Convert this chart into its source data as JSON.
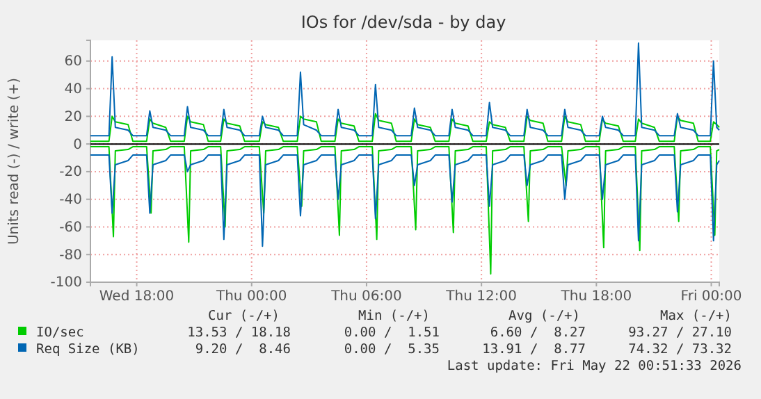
{
  "chart_data": {
    "type": "line",
    "title": "IOs for /dev/sda - by day",
    "ylabel": "Units read (-) / write (+)",
    "x": [
      "2026-05-20T15:35",
      "2026-05-20T16:33",
      "2026-05-20T16:43",
      "2026-05-20T16:53",
      "2026-05-20T17:33",
      "2026-05-20T17:48",
      "2026-05-20T18:31",
      "2026-05-20T18:41",
      "2026-05-20T18:51",
      "2026-05-20T19:31",
      "2026-05-20T19:46",
      "2026-05-20T20:29",
      "2026-05-20T20:39",
      "2026-05-20T20:49",
      "2026-05-20T21:29",
      "2026-05-20T21:44",
      "2026-05-20T22:23",
      "2026-05-20T22:33",
      "2026-05-20T22:43",
      "2026-05-20T23:23",
      "2026-05-20T23:38",
      "2026-05-21T00:24",
      "2026-05-21T00:34",
      "2026-05-21T00:44",
      "2026-05-21T01:24",
      "2026-05-21T01:39",
      "2026-05-21T02:23",
      "2026-05-21T02:33",
      "2026-05-21T02:43",
      "2026-05-21T03:23",
      "2026-05-21T03:38",
      "2026-05-21T04:21",
      "2026-05-21T04:31",
      "2026-05-21T04:41",
      "2026-05-21T05:21",
      "2026-05-21T05:36",
      "2026-05-21T06:18",
      "2026-05-21T06:28",
      "2026-05-21T06:38",
      "2026-05-21T07:18",
      "2026-05-21T07:33",
      "2026-05-21T08:20",
      "2026-05-21T08:30",
      "2026-05-21T08:40",
      "2026-05-21T09:20",
      "2026-05-21T09:35",
      "2026-05-21T10:18",
      "2026-05-21T10:28",
      "2026-05-21T10:38",
      "2026-05-21T11:18",
      "2026-05-21T11:33",
      "2026-05-21T12:15",
      "2026-05-21T12:25",
      "2026-05-21T12:35",
      "2026-05-21T13:15",
      "2026-05-21T13:30",
      "2026-05-21T14:13",
      "2026-05-21T14:23",
      "2026-05-21T14:33",
      "2026-05-21T15:13",
      "2026-05-21T15:28",
      "2026-05-21T16:11",
      "2026-05-21T16:21",
      "2026-05-21T16:31",
      "2026-05-21T17:11",
      "2026-05-21T17:26",
      "2026-05-21T18:09",
      "2026-05-21T18:19",
      "2026-05-21T18:29",
      "2026-05-21T19:09",
      "2026-05-21T19:24",
      "2026-05-21T20:02",
      "2026-05-21T20:12",
      "2026-05-21T20:22",
      "2026-05-21T21:02",
      "2026-05-21T21:17",
      "2026-05-21T22:04",
      "2026-05-21T22:14",
      "2026-05-21T22:24",
      "2026-05-21T23:04",
      "2026-05-21T23:19",
      "2026-05-21T23:57",
      "2026-05-22T00:07",
      "2026-05-22T00:17",
      "2026-05-22T00:25"
    ],
    "series": [
      {
        "name": "IO/sec",
        "color": "#00cc00",
        "values": [
          2,
          2,
          20,
          16,
          14,
          2,
          2,
          18,
          15,
          12,
          2,
          2,
          20,
          16,
          14,
          2,
          2,
          18,
          15,
          13,
          2,
          2,
          16,
          14,
          12,
          2,
          2,
          20,
          18,
          16,
          2,
          2,
          18,
          15,
          13,
          2,
          2,
          22,
          17,
          15,
          2,
          2,
          18,
          14,
          12,
          2,
          2,
          18,
          15,
          13,
          2,
          2,
          16,
          14,
          12,
          2,
          2,
          20,
          17,
          15,
          2,
          2,
          20,
          16,
          14,
          2,
          2,
          18,
          15,
          13,
          2,
          2,
          18,
          15,
          12,
          2,
          2,
          20,
          17,
          15,
          2,
          2,
          16,
          14,
          12
        ]
      },
      {
        "name": "Req Size (KB)",
        "color": "#0066b3",
        "values": [
          6,
          6,
          63,
          12,
          10,
          6,
          6,
          24,
          12,
          10,
          6,
          6,
          27,
          12,
          10,
          6,
          6,
          25,
          12,
          10,
          6,
          6,
          20,
          12,
          10,
          6,
          6,
          52,
          14,
          10,
          6,
          6,
          25,
          12,
          10,
          6,
          6,
          43,
          12,
          10,
          6,
          6,
          26,
          12,
          10,
          6,
          6,
          25,
          12,
          10,
          6,
          6,
          30,
          12,
          10,
          6,
          6,
          25,
          12,
          10,
          6,
          6,
          25,
          12,
          10,
          6,
          6,
          20,
          12,
          10,
          6,
          6,
          73,
          12,
          10,
          6,
          6,
          22,
          12,
          10,
          6,
          6,
          60,
          12,
          10
        ]
      },
      {
        "color": "#00cc00",
        "x": [
          "2026-05-20T15:35",
          "2026-05-20T16:33",
          "2026-05-20T16:47",
          "2026-05-20T16:53",
          "2026-05-20T17:33",
          "2026-05-20T17:48",
          "2026-05-20T18:31",
          "2026-05-20T18:45",
          "2026-05-20T18:51",
          "2026-05-20T19:31",
          "2026-05-20T19:46",
          "2026-05-20T20:29",
          "2026-05-20T20:43",
          "2026-05-20T20:49",
          "2026-05-20T21:29",
          "2026-05-20T21:44",
          "2026-05-20T22:23",
          "2026-05-20T22:37",
          "2026-05-20T22:43",
          "2026-05-20T23:23",
          "2026-05-20T23:38",
          "2026-05-21T00:24",
          "2026-05-21T00:38",
          "2026-05-21T00:44",
          "2026-05-21T01:24",
          "2026-05-21T01:39",
          "2026-05-21T02:23",
          "2026-05-21T02:37",
          "2026-05-21T02:43",
          "2026-05-21T03:23",
          "2026-05-21T03:38",
          "2026-05-21T04:21",
          "2026-05-21T04:35",
          "2026-05-21T04:41",
          "2026-05-21T05:21",
          "2026-05-21T05:36",
          "2026-05-21T06:18",
          "2026-05-21T06:32",
          "2026-05-21T06:38",
          "2026-05-21T07:18",
          "2026-05-21T07:33",
          "2026-05-21T08:20",
          "2026-05-21T08:34",
          "2026-05-21T08:40",
          "2026-05-21T09:20",
          "2026-05-21T09:35",
          "2026-05-21T10:18",
          "2026-05-21T10:32",
          "2026-05-21T10:38",
          "2026-05-21T11:18",
          "2026-05-21T11:33",
          "2026-05-21T12:15",
          "2026-05-21T12:29",
          "2026-05-21T12:35",
          "2026-05-21T13:15",
          "2026-05-21T13:30",
          "2026-05-21T14:13",
          "2026-05-21T14:27",
          "2026-05-21T14:33",
          "2026-05-21T15:13",
          "2026-05-21T15:28",
          "2026-05-21T16:11",
          "2026-05-21T16:25",
          "2026-05-21T16:31",
          "2026-05-21T17:11",
          "2026-05-21T17:26",
          "2026-05-21T18:09",
          "2026-05-21T18:23",
          "2026-05-21T18:29",
          "2026-05-21T19:09",
          "2026-05-21T19:24",
          "2026-05-21T20:02",
          "2026-05-21T20:16",
          "2026-05-21T20:22",
          "2026-05-21T21:02",
          "2026-05-21T21:17",
          "2026-05-21T22:04",
          "2026-05-21T22:18",
          "2026-05-21T22:24",
          "2026-05-21T23:04",
          "2026-05-21T23:19",
          "2026-05-21T23:57",
          "2026-05-22T00:11",
          "2026-05-22T00:17",
          "2026-05-22T00:25"
        ],
        "values": [
          -2,
          -2,
          -67,
          -5,
          -4,
          -2,
          -2,
          -50,
          -5,
          -4,
          -2,
          -2,
          -71,
          -5,
          -4,
          -2,
          -2,
          -60,
          -5,
          -4,
          -2,
          -2,
          -50,
          -5,
          -4,
          -2,
          -2,
          -45,
          -5,
          -4,
          -2,
          -2,
          -66,
          -5,
          -4,
          -2,
          -2,
          -69,
          -5,
          -4,
          -2,
          -2,
          -62,
          -5,
          -4,
          -2,
          -2,
          -64,
          -5,
          -4,
          -2,
          -2,
          -94,
          -5,
          -4,
          -2,
          -2,
          -56,
          -5,
          -4,
          -2,
          -2,
          -30,
          -5,
          -4,
          -2,
          -2,
          -75,
          -5,
          -4,
          -2,
          -2,
          -77,
          -5,
          -4,
          -2,
          -2,
          -56,
          -5,
          -4,
          -2,
          -2,
          -66,
          -5,
          -4
        ]
      },
      {
        "color": "#0066b3",
        "values": [
          -8,
          -8,
          -50,
          -15,
          -12,
          -8,
          -8,
          -50,
          -15,
          -12,
          -8,
          -8,
          -20,
          -15,
          -12,
          -8,
          -8,
          -69,
          -15,
          -12,
          -8,
          -8,
          -74,
          -15,
          -12,
          -8,
          -8,
          -52,
          -15,
          -12,
          -8,
          -8,
          -40,
          -15,
          -12,
          -8,
          -8,
          -54,
          -15,
          -12,
          -8,
          -8,
          -30,
          -15,
          -12,
          -8,
          -8,
          -42,
          -15,
          -12,
          -8,
          -8,
          -45,
          -15,
          -12,
          -8,
          -8,
          -30,
          -15,
          -12,
          -8,
          -8,
          -40,
          -15,
          -12,
          -8,
          -8,
          -40,
          -15,
          -12,
          -8,
          -8,
          -70,
          -15,
          -12,
          -8,
          -8,
          -49,
          -15,
          -12,
          -8,
          -8,
          -70,
          -15,
          -12
        ]
      }
    ],
    "xlim": [
      "2026-05-20T15:35",
      "2026-05-22T00:25"
    ],
    "xticks": [
      {
        "value": "2026-05-20T18:00",
        "label": "Wed 18:00"
      },
      {
        "value": "2026-05-21T00:00",
        "label": "Thu 00:00"
      },
      {
        "value": "2026-05-21T06:00",
        "label": "Thu 06:00"
      },
      {
        "value": "2026-05-21T12:00",
        "label": "Thu 12:00"
      },
      {
        "value": "2026-05-21T18:00",
        "label": "Thu 18:00"
      },
      {
        "value": "2026-05-22T00:00",
        "label": "Fri 00:00"
      }
    ],
    "ylim": [
      -100,
      75
    ],
    "yticks": [
      -100,
      -80,
      -60,
      -40,
      -20,
      0,
      20,
      40,
      60
    ],
    "ref_lines": [
      {
        "axis": "y",
        "value": 0,
        "color": "#000000"
      }
    ],
    "grid": true,
    "legend": "bottom",
    "marker": "none",
    "line_style": "solid",
    "annotations": [
      "Cur (-/+)",
      "Min (-/+)",
      "Avg (-/+)",
      "Max (-/+)",
      "13.53 / 18.18",
      "0.00 /  1.51",
      "6.60 /  8.27",
      "93.27 / 27.10",
      "9.20 /  8.46",
      "0.00 /  5.35",
      "13.91 /  8.77",
      "74.32 / 73.32",
      "Last update: Fri May 22 00:51:33 2026"
    ]
  }
}
